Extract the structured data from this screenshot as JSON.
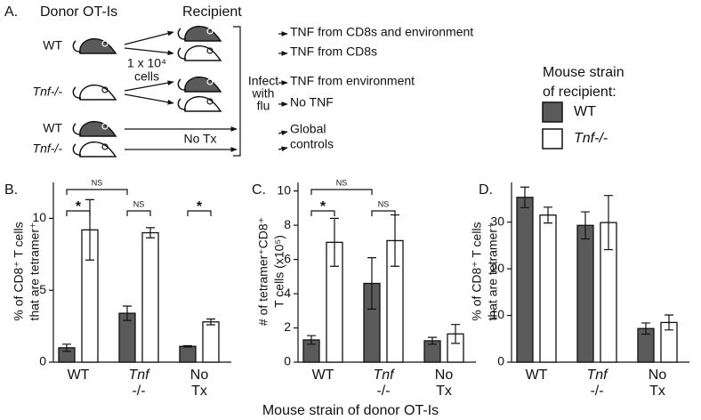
{
  "diagram": {
    "panel_label": "A.",
    "donor_header": "Donor OT-Is",
    "recipient_header": "Recipient",
    "donors": [
      "WT",
      "Tnf-/-",
      "WT",
      "Tnf-/-"
    ],
    "transfer": [
      "1 x 10⁴",
      "cells"
    ],
    "no_tx": "No Tx",
    "infect": [
      "Infect",
      "with",
      "flu"
    ],
    "outcomes": [
      "TNF from CD8s and environment",
      "TNF from CD8s",
      "TNF from environment",
      "No TNF"
    ],
    "controls": [
      "Global",
      "controls"
    ]
  },
  "legend": {
    "title": [
      "Mouse strain",
      "of recipient:"
    ],
    "items": [
      {
        "label": "WT",
        "color": "#5a5a5a"
      },
      {
        "label": "Tnf-/-",
        "color": "#ffffff"
      }
    ]
  },
  "x_axis_title": "Mouse strain of donor OT-Is",
  "chart_data": [
    {
      "type": "bar",
      "panel_label": "B.",
      "y_label": [
        "% of CD8⁺ T cells",
        "that are tetramer⁺"
      ],
      "categories": [
        [
          "WT"
        ],
        [
          "Tnf",
          "-/-"
        ],
        [
          "No",
          "Tx"
        ]
      ],
      "ylim": [
        0,
        12.5
      ],
      "yticks": [
        0,
        5,
        10
      ],
      "series": [
        {
          "color": "#5a5a5a",
          "values": [
            1.0,
            3.4,
            1.1
          ],
          "errors": [
            0.25,
            0.5,
            0.05
          ]
        },
        {
          "color": "#ffffff",
          "values": [
            9.2,
            9.0,
            2.8
          ],
          "errors": [
            2.1,
            0.35,
            0.2
          ]
        }
      ],
      "annotations": [
        "NS",
        "*",
        "NS",
        "*"
      ]
    },
    {
      "type": "bar",
      "panel_label": "C.",
      "y_label": [
        "# of tetramer⁺CD8⁺",
        "T cells (x10⁵)"
      ],
      "categories": [
        [
          "WT"
        ],
        [
          "Tnf",
          "-/-"
        ],
        [
          "No",
          "Tx"
        ]
      ],
      "ylim": [
        0,
        10.5
      ],
      "yticks": [
        0,
        2,
        4,
        6,
        8,
        10
      ],
      "series": [
        {
          "color": "#5a5a5a",
          "values": [
            1.3,
            4.6,
            1.25
          ],
          "errors": [
            0.25,
            1.5,
            0.2
          ]
        },
        {
          "color": "#ffffff",
          "values": [
            7.0,
            7.1,
            1.65
          ],
          "errors": [
            1.4,
            1.5,
            0.55
          ]
        }
      ],
      "annotations": [
        "NS",
        "*",
        "NS"
      ]
    },
    {
      "type": "bar",
      "panel_label": "D.",
      "y_label": [
        "% of CD8⁺ T cells",
        "that are tetramer⁺"
      ],
      "categories": [
        [
          "WT"
        ],
        [
          "Tnf",
          "-/-"
        ],
        [
          "No",
          "Tx"
        ]
      ],
      "ylim": [
        0,
        38.5
      ],
      "yticks": [
        0,
        10,
        20,
        30
      ],
      "series": [
        {
          "color": "#5a5a5a",
          "values": [
            35.3,
            29.3,
            7.2
          ],
          "errors": [
            2.2,
            2.9,
            1.2
          ]
        },
        {
          "color": "#ffffff",
          "values": [
            31.5,
            29.9,
            8.5
          ],
          "errors": [
            1.7,
            5.8,
            1.6
          ]
        }
      ]
    }
  ]
}
